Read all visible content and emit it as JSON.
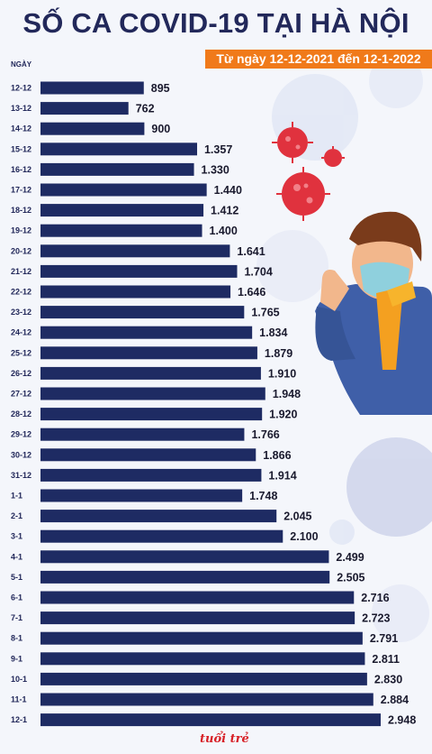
{
  "title": "SỐ CA COVID-19 TẠI HÀ NỘI",
  "subtitle": "Từ ngày 12-12-2021 đến 12-1-2022",
  "column_label": "NGÀY",
  "logo_text": "tuổi trẻ",
  "colors": {
    "bar": "#1e2b63",
    "title": "#22285a",
    "accent": "#f07a1a"
  },
  "chart_data": {
    "type": "bar",
    "orientation": "horizontal",
    "title": "SỐ CA COVID-19 TẠI HÀ NỘI",
    "subtitle": "Từ ngày 12-12-2021 đến 12-1-2022",
    "ylabel": "NGÀY",
    "xlabel": "",
    "xlim": [
      0,
      3000
    ],
    "grid": false,
    "categories": [
      "12-12",
      "13-12",
      "14-12",
      "15-12",
      "16-12",
      "17-12",
      "18-12",
      "19-12",
      "20-12",
      "21-12",
      "22-12",
      "23-12",
      "24-12",
      "25-12",
      "26-12",
      "27-12",
      "28-12",
      "29-12",
      "30-12",
      "31-12",
      "1-1",
      "2-1",
      "3-1",
      "4-1",
      "5-1",
      "6-1",
      "7-1",
      "8-1",
      "9-1",
      "10-1",
      "11-1",
      "12-1"
    ],
    "values": [
      895,
      762,
      900,
      1357,
      1330,
      1440,
      1412,
      1400,
      1641,
      1704,
      1646,
      1765,
      1834,
      1879,
      1910,
      1948,
      1920,
      1766,
      1866,
      1914,
      1748,
      2045,
      2100,
      2499,
      2505,
      2716,
      2723,
      2791,
      2811,
      2830,
      2884,
      2948
    ],
    "value_labels": [
      "895",
      "762",
      "900",
      "1.357",
      "1.330",
      "1.440",
      "1.412",
      "1.400",
      "1.641",
      "1.704",
      "1.646",
      "1.765",
      "1.834",
      "1.879",
      "1.910",
      "1.948",
      "1.920",
      "1.766",
      "1.866",
      "1.914",
      "1.748",
      "2.045",
      "2.100",
      "2.499",
      "2.505",
      "2.716",
      "2.723",
      "2.791",
      "2.811",
      "2.830",
      "2.884",
      "2.948"
    ]
  }
}
